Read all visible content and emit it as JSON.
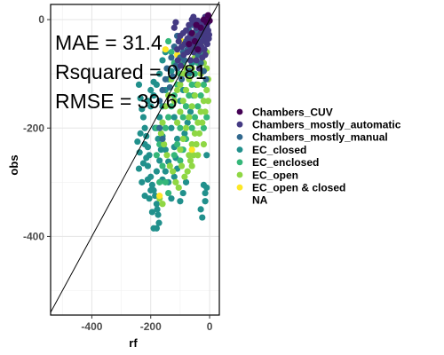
{
  "chart_data": {
    "type": "scatter",
    "xlabel": "rf",
    "ylabel": "obs",
    "xlim": [
      -540,
      33
    ],
    "ylim": [
      -545,
      28
    ],
    "x_ticks": [
      -400,
      -200,
      0
    ],
    "y_ticks": [
      0,
      -200,
      -400
    ],
    "x_tick_labels": [
      "-400",
      "-200",
      "0"
    ],
    "y_tick_labels": [
      "0",
      "-200",
      "-400"
    ],
    "grid": true,
    "identity_line": {
      "slope": 1,
      "intercept": 0
    },
    "annotations": [
      "MAE = 31.4",
      "Rsquared = 0.81",
      "RMSE = 39.6"
    ],
    "legend": {
      "placement": "right",
      "entries": [
        {
          "name": "Chambers_CUV",
          "color": "#440154"
        },
        {
          "name": "Chambers_mostly_automatic",
          "color": "#443A83"
        },
        {
          "name": "Chambers_mostly_manual",
          "color": "#31688E"
        },
        {
          "name": "EC_closed",
          "color": "#21908C"
        },
        {
          "name": "EC_enclosed",
          "color": "#35B779"
        },
        {
          "name": "EC_open",
          "color": "#8FD744"
        },
        {
          "name": "EC_open & closed",
          "color": "#FDE725"
        },
        {
          "name": "NA",
          "color": ""
        }
      ]
    },
    "series": [
      {
        "name": "EC_closed",
        "color": "#21908C",
        "points": [
          [
            -240,
            -120
          ],
          [
            -235,
            -145
          ],
          [
            -230,
            -165
          ],
          [
            -225,
            -180
          ],
          [
            -220,
            -200
          ],
          [
            -215,
            -215
          ],
          [
            -210,
            -235
          ],
          [
            -205,
            -250
          ],
          [
            -210,
            -270
          ],
          [
            -200,
            -290
          ],
          [
            -195,
            -305
          ],
          [
            -190,
            -315
          ],
          [
            -185,
            -325
          ],
          [
            -180,
            -340
          ],
          [
            -178,
            -350
          ],
          [
            -175,
            -360
          ],
          [
            -172,
            -375
          ],
          [
            -180,
            -385
          ],
          [
            -240,
            -275
          ],
          [
            -230,
            -300
          ],
          [
            -220,
            -325
          ],
          [
            -205,
            -330
          ],
          [
            -195,
            -355
          ],
          [
            -190,
            -385
          ],
          [
            -200,
            -315
          ],
          [
            -210,
            -295
          ],
          [
            -225,
            -265
          ],
          [
            -238,
            -245
          ],
          [
            -245,
            -225
          ],
          [
            -160,
            -215
          ],
          [
            -150,
            -240
          ],
          [
            -140,
            -262
          ],
          [
            -130,
            -200
          ],
          [
            -120,
            -180
          ],
          [
            -110,
            -220
          ],
          [
            -100,
            -150
          ],
          [
            -90,
            -130
          ],
          [
            -80,
            -160
          ],
          [
            -70,
            -100
          ],
          [
            -60,
            -80
          ],
          [
            -170,
            -180
          ],
          [
            -160,
            -160
          ],
          [
            -150,
            -130
          ],
          [
            -140,
            -110
          ],
          [
            -130,
            -95
          ],
          [
            -200,
            -160
          ],
          [
            -190,
            -140
          ],
          [
            -180,
            -120
          ],
          [
            -170,
            -100
          ],
          [
            -160,
            -75
          ],
          [
            -150,
            -60
          ],
          [
            -120,
            -235
          ],
          [
            -115,
            -255
          ],
          [
            -95,
            -240
          ],
          [
            -85,
            -210
          ],
          [
            -75,
            -190
          ],
          [
            -65,
            -170
          ],
          [
            -55,
            -140
          ],
          [
            -45,
            -120
          ],
          [
            -20,
            -305
          ],
          [
            -15,
            -335
          ],
          [
            -10,
            -310
          ],
          [
            -15,
            -320
          ],
          [
            -10,
            -250
          ],
          [
            -30,
            -350
          ],
          [
            -25,
            -365
          ],
          [
            -80,
            -300
          ],
          [
            -90,
            -320
          ],
          [
            -100,
            -335
          ],
          [
            -110,
            -275
          ],
          [
            -160,
            -295
          ],
          [
            -150,
            -280
          ],
          [
            -140,
            -300
          ],
          [
            -130,
            -330
          ],
          [
            -120,
            -290
          ],
          [
            -210,
            -150
          ],
          [
            -200,
            -130
          ],
          [
            -190,
            -115
          ],
          [
            -220,
            -230
          ],
          [
            -215,
            -255
          ],
          [
            -235,
            -210
          ],
          [
            -180,
            -280
          ],
          [
            -170,
            -260
          ],
          [
            -165,
            -240
          ],
          [
            -175,
            -220
          ],
          [
            -185,
            -200
          ]
        ]
      },
      {
        "name": "EC_enclosed",
        "color": "#35B779",
        "points": [
          [
            -150,
            -200
          ],
          [
            -140,
            -180
          ],
          [
            -130,
            -160
          ],
          [
            -120,
            -140
          ],
          [
            -110,
            -120
          ],
          [
            -100,
            -100
          ],
          [
            -90,
            -80
          ],
          [
            -80,
            -60
          ],
          [
            -70,
            -40
          ],
          [
            -60,
            -30
          ],
          [
            -100,
            -200
          ],
          [
            -90,
            -180
          ],
          [
            -80,
            -160
          ],
          [
            -70,
            -140
          ],
          [
            -60,
            -120
          ],
          [
            -50,
            -100
          ],
          [
            -40,
            -80
          ],
          [
            -30,
            -60
          ],
          [
            -120,
            -250
          ],
          [
            -110,
            -230
          ],
          [
            -100,
            -260
          ],
          [
            -90,
            -240
          ],
          [
            -80,
            -220
          ],
          [
            -180,
            -250
          ],
          [
            -170,
            -230
          ],
          [
            -160,
            -270
          ],
          [
            -150,
            -300
          ],
          [
            -140,
            -320
          ],
          [
            -60,
            -200
          ],
          [
            -50,
            -180
          ],
          [
            -40,
            -160
          ],
          [
            -30,
            -140
          ],
          [
            -20,
            -120
          ],
          [
            -130,
            -60
          ],
          [
            -140,
            -40
          ],
          [
            -120,
            -80
          ],
          [
            -20,
            -200
          ],
          [
            -10,
            -180
          ],
          [
            -180,
            -200
          ],
          [
            -170,
            -300
          ]
        ]
      },
      {
        "name": "EC_open",
        "color": "#8FD744",
        "points": [
          [
            -120,
            -150
          ],
          [
            -110,
            -130
          ],
          [
            -100,
            -170
          ],
          [
            -90,
            -150
          ],
          [
            -80,
            -130
          ],
          [
            -70,
            -110
          ],
          [
            -60,
            -90
          ],
          [
            -50,
            -70
          ],
          [
            -40,
            -50
          ],
          [
            -30,
            -40
          ],
          [
            -80,
            -200
          ],
          [
            -70,
            -180
          ],
          [
            -60,
            -160
          ],
          [
            -50,
            -140
          ],
          [
            -40,
            -120
          ],
          [
            -30,
            -100
          ],
          [
            -20,
            -80
          ],
          [
            -10,
            -60
          ],
          [
            -100,
            -240
          ],
          [
            -90,
            -220
          ],
          [
            -70,
            -250
          ],
          [
            -60,
            -230
          ],
          [
            -50,
            -210
          ],
          [
            -40,
            -190
          ],
          [
            -30,
            -170
          ],
          [
            -20,
            -150
          ],
          [
            -10,
            -130
          ],
          [
            -110,
            -190
          ],
          [
            -100,
            -120
          ],
          [
            -90,
            -100
          ],
          [
            -80,
            -90
          ],
          [
            -130,
            -110
          ],
          [
            -140,
            -140
          ],
          [
            -150,
            -160
          ],
          [
            -160,
            -190
          ],
          [
            -165,
            -210
          ],
          [
            -155,
            -230
          ],
          [
            -145,
            -250
          ],
          [
            -135,
            -270
          ],
          [
            -125,
            -280
          ],
          [
            -115,
            -300
          ],
          [
            -105,
            -310
          ],
          [
            -95,
            -270
          ],
          [
            -85,
            -290
          ],
          [
            -75,
            -280
          ],
          [
            -65,
            -260
          ],
          [
            -55,
            -250
          ],
          [
            -45,
            -230
          ],
          [
            -35,
            -210
          ],
          [
            -25,
            -190
          ],
          [
            -15,
            -170
          ],
          [
            -5,
            -150
          ],
          [
            -20,
            -230
          ],
          [
            -40,
            -250
          ],
          [
            -60,
            -270
          ],
          [
            -50,
            -30
          ],
          [
            -30,
            -20
          ],
          [
            -40,
            -10
          ],
          [
            -20,
            -40
          ],
          [
            -10,
            -90
          ],
          [
            -5,
            -110
          ],
          [
            -170,
            -330
          ],
          [
            -160,
            -340
          ]
        ]
      },
      {
        "name": "EC_open & closed",
        "color": "#FDE725",
        "points": [
          [
            -110,
            -65
          ],
          [
            -95,
            -40
          ],
          [
            -170,
            -325
          ],
          [
            -60,
            -240
          ],
          [
            -150,
            -55
          ]
        ]
      },
      {
        "name": "Chambers_mostly_manual",
        "color": "#31688E",
        "points": [
          [
            -170,
            -200
          ],
          [
            -160,
            -220
          ],
          [
            -90,
            -60
          ],
          [
            -80,
            -40
          ],
          [
            -70,
            -20
          ],
          [
            -85,
            -75
          ],
          [
            -75,
            -55
          ],
          [
            -65,
            -35
          ],
          [
            -60,
            -10
          ],
          [
            -50,
            -5
          ],
          [
            -45,
            -20
          ],
          [
            -35,
            -35
          ],
          [
            -25,
            -25
          ],
          [
            -15,
            -15
          ],
          [
            -5,
            -5
          ],
          [
            -110,
            -90
          ],
          [
            -100,
            -70
          ],
          [
            -55,
            -50
          ],
          [
            -40,
            -65
          ],
          [
            -30,
            -80
          ],
          [
            -20,
            -95
          ],
          [
            -12,
            -110
          ],
          [
            -70,
            -95
          ],
          [
            -95,
            -110
          ],
          [
            -135,
            -125
          ],
          [
            -125,
            -105
          ],
          [
            -115,
            -85
          ],
          [
            -145,
            -90
          ],
          [
            -130,
            -70
          ],
          [
            -120,
            -50
          ],
          [
            -110,
            -30
          ],
          [
            -150,
            -110
          ],
          [
            -160,
            -130
          ],
          [
            -170,
            -150
          ]
        ]
      },
      {
        "name": "Chambers_mostly_automatic",
        "color": "#443A83",
        "points": [
          [
            -60,
            0
          ],
          [
            -55,
            5
          ],
          [
            -50,
            -8
          ],
          [
            -45,
            -15
          ],
          [
            -40,
            -2
          ],
          [
            -35,
            -12
          ],
          [
            -30,
            -5
          ],
          [
            -25,
            -18
          ],
          [
            -20,
            -8
          ],
          [
            -15,
            -22
          ],
          [
            -10,
            -12
          ],
          [
            -5,
            -20
          ],
          [
            -70,
            -10
          ],
          [
            -80,
            -20
          ],
          [
            -90,
            -25
          ],
          [
            -100,
            -30
          ],
          [
            -105,
            -40
          ],
          [
            -95,
            -50
          ],
          [
            -85,
            -45
          ],
          [
            -75,
            -35
          ],
          [
            -65,
            -28
          ],
          [
            -58,
            -40
          ],
          [
            -48,
            -35
          ],
          [
            -38,
            -45
          ],
          [
            -28,
            -50
          ],
          [
            -18,
            -55
          ],
          [
            -8,
            -45
          ],
          [
            -3,
            -35
          ],
          [
            -55,
            -60
          ],
          [
            -45,
            -75
          ],
          [
            -35,
            -90
          ],
          [
            -25,
            -70
          ],
          [
            -15,
            -65
          ],
          [
            -110,
            -55
          ],
          [
            -120,
            -15
          ],
          [
            -115,
            -5
          ],
          [
            -65,
            -75
          ],
          [
            -75,
            -60
          ],
          [
            -40,
            -30
          ],
          [
            -30,
            -25
          ],
          [
            -20,
            -30
          ],
          [
            -10,
            -38
          ],
          [
            -2,
            -28
          ],
          [
            -50,
            -50
          ],
          [
            -60,
            -55
          ],
          [
            -68,
            -48
          ],
          [
            -88,
            -65
          ],
          [
            -98,
            -85
          ],
          [
            -108,
            -75
          ],
          [
            -15,
            5
          ],
          [
            -5,
            2
          ],
          [
            -25,
            -40
          ],
          [
            -35,
            -58
          ]
        ]
      },
      {
        "name": "Chambers_CUV",
        "color": "#440154",
        "points": [
          [
            -45,
            -10
          ],
          [
            -30,
            -15
          ],
          [
            -20,
            0
          ],
          [
            -10,
            -5
          ],
          [
            -5,
            8
          ],
          [
            0,
            -2
          ],
          [
            -60,
            -25
          ],
          [
            -70,
            -45
          ],
          [
            -50,
            -40
          ],
          [
            -40,
            -55
          ]
        ]
      }
    ]
  }
}
